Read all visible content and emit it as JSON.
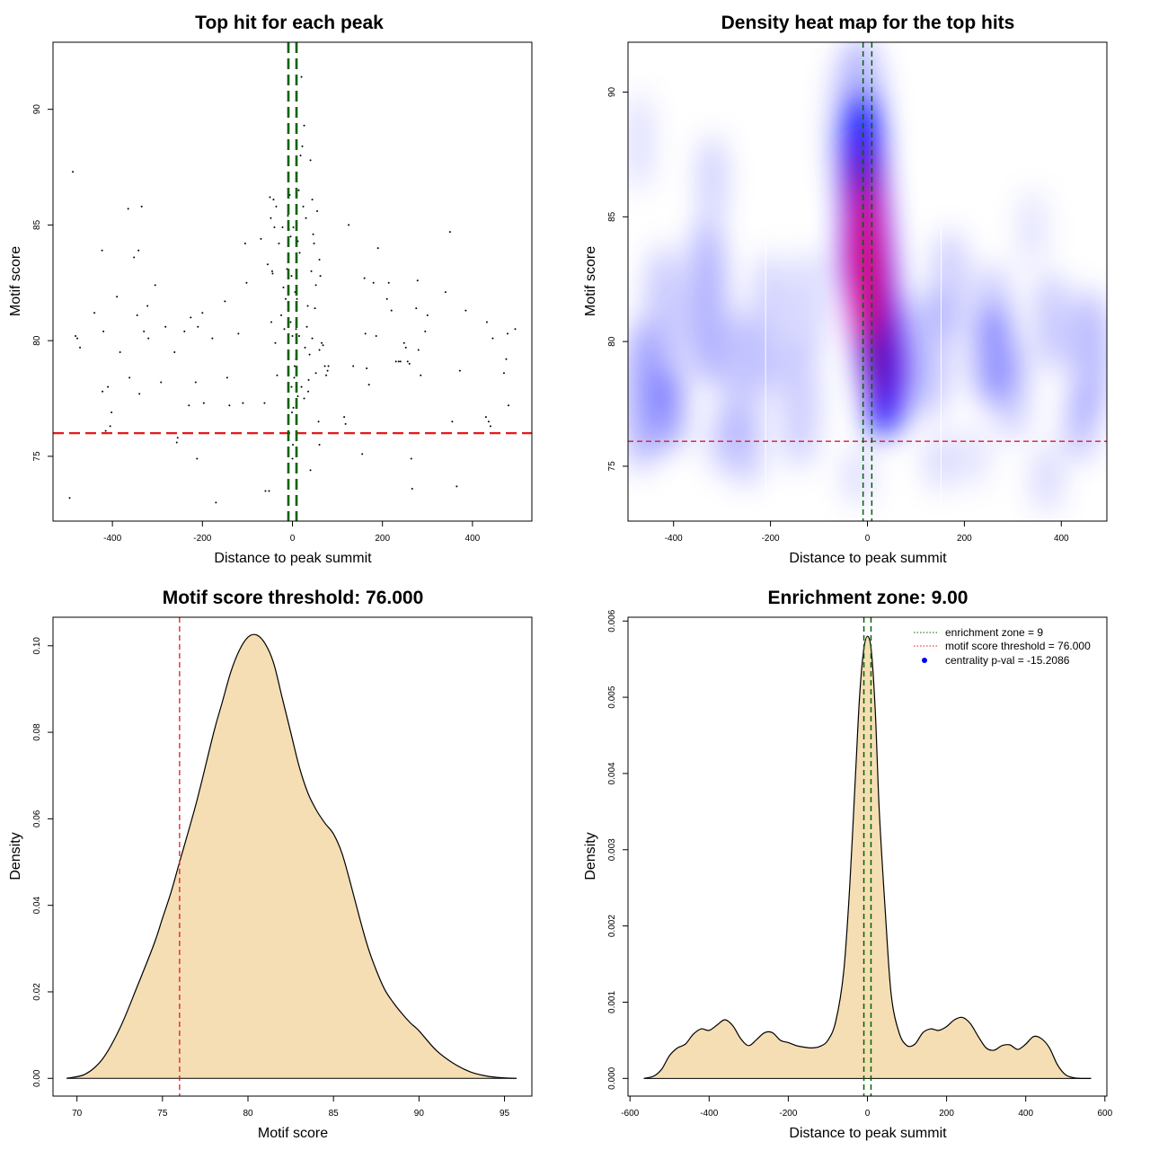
{
  "chart_data": [
    {
      "type": "scatter",
      "title": "Top hit for each peak",
      "xlabel": "Distance to peak summit",
      "ylabel": "Motif score",
      "xlim": [
        -532,
        532
      ],
      "ylim": [
        72.2,
        92.9
      ],
      "xticks": [
        -400,
        -200,
        0,
        200,
        400
      ],
      "yticks": [
        75,
        80,
        85,
        90
      ],
      "hline": {
        "value": 76,
        "color": "#e31a1c"
      },
      "vlines": {
        "values": [
          -9,
          9
        ],
        "color": "#006400"
      },
      "points": [
        [
          -488,
          87.3
        ],
        [
          -495,
          73.2
        ],
        [
          -482,
          80.2
        ],
        [
          -478,
          80.1
        ],
        [
          -472,
          79.7
        ],
        [
          -440,
          81.2
        ],
        [
          -423,
          83.9
        ],
        [
          -422,
          77.8
        ],
        [
          -420,
          80.4
        ],
        [
          -415,
          76.1
        ],
        [
          -410,
          78.0
        ],
        [
          -405,
          76.3
        ],
        [
          -402,
          76.9
        ],
        [
          -390,
          81.9
        ],
        [
          -383,
          79.5
        ],
        [
          -365,
          85.7
        ],
        [
          -362,
          78.4
        ],
        [
          -352,
          83.6
        ],
        [
          -345,
          81.1
        ],
        [
          -340,
          77.7
        ],
        [
          -342,
          83.9
        ],
        [
          -335,
          85.8
        ],
        [
          -330,
          80.4
        ],
        [
          -322,
          81.5
        ],
        [
          -320,
          80.1
        ],
        [
          -305,
          82.4
        ],
        [
          -292,
          78.2
        ],
        [
          -282,
          80.6
        ],
        [
          -262,
          79.5
        ],
        [
          -257,
          75.6
        ],
        [
          -255,
          75.8
        ],
        [
          -240,
          80.4
        ],
        [
          -230,
          77.2
        ],
        [
          -226,
          81.0
        ],
        [
          -215,
          78.2
        ],
        [
          -212,
          74.9
        ],
        [
          -210,
          80.6
        ],
        [
          -200,
          81.2
        ],
        [
          -197,
          77.3
        ],
        [
          -178,
          80.1
        ],
        [
          -170,
          73.0
        ],
        [
          -150,
          81.7
        ],
        [
          -145,
          78.4
        ],
        [
          -140,
          77.2
        ],
        [
          -120,
          80.3
        ],
        [
          -110,
          77.3
        ],
        [
          -105,
          84.2
        ],
        [
          -102,
          82.5
        ],
        [
          -70,
          84.4
        ],
        [
          -62,
          77.3
        ],
        [
          -60,
          73.5
        ],
        [
          -55,
          83.3
        ],
        [
          -52,
          73.5
        ],
        [
          -50,
          86.2
        ],
        [
          -48,
          85.3
        ],
        [
          -47,
          80.8
        ],
        [
          -45,
          83.0
        ],
        [
          -44,
          82.9
        ],
        [
          -42,
          86.1
        ],
        [
          -40,
          84.9
        ],
        [
          -38,
          79.9
        ],
        [
          -36,
          85.8
        ],
        [
          -34,
          78.5
        ],
        [
          -30,
          84.2
        ],
        [
          -25,
          81.1
        ],
        [
          -22,
          84.9
        ],
        [
          -20,
          82.3
        ],
        [
          -18,
          80.5
        ],
        [
          -15,
          81.8
        ],
        [
          -12,
          83.1
        ],
        [
          -10,
          85.4
        ],
        [
          -8,
          84.8
        ],
        [
          -6,
          86.3
        ],
        [
          -4,
          80.8
        ],
        [
          -2,
          82.8
        ],
        [
          0,
          80.2
        ],
        [
          2,
          84.9
        ],
        [
          4,
          78.4
        ],
        [
          6,
          82.1
        ],
        [
          8,
          80.5
        ],
        [
          10,
          81.8
        ],
        [
          12,
          84.3
        ],
        [
          14,
          86.5
        ],
        [
          16,
          83.8
        ],
        [
          18,
          88.0
        ],
        [
          20,
          91.4
        ],
        [
          22,
          88.4
        ],
        [
          24,
          85.8
        ],
        [
          26,
          89.3
        ],
        [
          28,
          79.7
        ],
        [
          30,
          85.3
        ],
        [
          32,
          80.6
        ],
        [
          34,
          81.5
        ],
        [
          36,
          78.3
        ],
        [
          38,
          79.4
        ],
        [
          40,
          87.8
        ],
        [
          42,
          83.0
        ],
        [
          44,
          86.1
        ],
        [
          46,
          84.6
        ],
        [
          48,
          84.2
        ],
        [
          50,
          81.4
        ],
        [
          52,
          82.4
        ],
        [
          55,
          85.6
        ],
        [
          58,
          76.5
        ],
        [
          60,
          83.5
        ],
        [
          62,
          82.8
        ],
        [
          65,
          79.9
        ],
        [
          68,
          79.8
        ],
        [
          72,
          78.9
        ],
        [
          75,
          78.5
        ],
        [
          78,
          78.7
        ],
        [
          80,
          78.9
        ],
        [
          125,
          85.0
        ],
        [
          115,
          76.7
        ],
        [
          118,
          76.4
        ],
        [
          135,
          78.9
        ],
        [
          155,
          75.1
        ],
        [
          160,
          82.7
        ],
        [
          162,
          80.3
        ],
        [
          165,
          78.8
        ],
        [
          170,
          78.1
        ],
        [
          180,
          82.5
        ],
        [
          186,
          80.2
        ],
        [
          190,
          84.0
        ],
        [
          210,
          81.8
        ],
        [
          214,
          82.5
        ],
        [
          220,
          81.3
        ],
        [
          230,
          79.1
        ],
        [
          236,
          79.1
        ],
        [
          240,
          79.1
        ],
        [
          248,
          79.9
        ],
        [
          252,
          79.7
        ],
        [
          256,
          79.1
        ],
        [
          260,
          79.0
        ],
        [
          264,
          74.9
        ],
        [
          266,
          73.6
        ],
        [
          275,
          81.4
        ],
        [
          278,
          82.6
        ],
        [
          280,
          79.6
        ],
        [
          285,
          78.5
        ],
        [
          295,
          80.4
        ],
        [
          300,
          81.1
        ],
        [
          340,
          82.1
        ],
        [
          350,
          84.7
        ],
        [
          355,
          76.5
        ],
        [
          365,
          73.7
        ],
        [
          372,
          78.7
        ],
        [
          385,
          81.3
        ],
        [
          430,
          76.7
        ],
        [
          432,
          80.8
        ],
        [
          436,
          76.5
        ],
        [
          440,
          76.3
        ],
        [
          445,
          80.1
        ],
        [
          470,
          78.6
        ],
        [
          475,
          79.2
        ],
        [
          478,
          80.3
        ],
        [
          480,
          77.2
        ],
        [
          495,
          80.5
        ],
        [
          8,
          79.2
        ],
        [
          -4,
          84.5
        ],
        [
          15,
          80.2
        ],
        [
          26,
          77.5
        ],
        [
          35,
          77.8
        ],
        [
          44,
          80.1
        ],
        [
          52,
          78.6
        ],
        [
          60,
          79.6
        ],
        [
          12,
          77.6
        ],
        [
          20,
          78.0
        ],
        [
          -1,
          76.9
        ],
        [
          5,
          78.9
        ],
        [
          2,
          77.1
        ],
        [
          1,
          75.5
        ],
        [
          0,
          74.9
        ],
        [
          -2,
          78.0
        ],
        [
          23,
          76.0
        ],
        [
          40,
          74.4
        ],
        [
          60,
          75.5
        ]
      ]
    },
    {
      "type": "heatmap",
      "title": "Density heat map for the top hits",
      "xlabel": "Distance to peak summit",
      "ylabel": "Motif score",
      "xlim": [
        -494,
        494
      ],
      "ylim": [
        72.8,
        92.0
      ],
      "xticks": [
        -400,
        -200,
        0,
        200,
        400
      ],
      "yticks": [
        75,
        80,
        85,
        90
      ],
      "hline": {
        "value": 76,
        "color": "#e31a1c"
      },
      "vlines": {
        "values": [
          -9,
          9
        ],
        "color": "#006400"
      },
      "colors": [
        "#ffffff",
        "#0000ff",
        "#ff0000"
      ]
    },
    {
      "type": "area",
      "title": "Motif score threshold: 76.000",
      "xlabel": "Motif score",
      "ylabel": "Density",
      "xlim": [
        68.6,
        96.6
      ],
      "ylim": [
        -0.0041,
        0.1066
      ],
      "xticks": [
        70,
        75,
        80,
        85,
        90,
        95
      ],
      "yticks": [
        0.0,
        0.02,
        0.04,
        0.06,
        0.08,
        0.1
      ],
      "ytick_labels": [
        "0.00",
        "0.02",
        "0.04",
        "0.06",
        "0.08",
        "0.10"
      ],
      "fill": "#f5deb3",
      "vline": {
        "value": 76,
        "color": "#e31a1c"
      },
      "x": [
        69.4,
        70.5,
        71.5,
        72.5,
        73.5,
        74.5,
        75.0,
        75.5,
        76.0,
        77.0,
        78.0,
        78.5,
        79.0,
        79.5,
        80.0,
        80.5,
        81.0,
        81.5,
        82.0,
        82.5,
        83.0,
        83.5,
        84.0,
        84.5,
        85.0,
        85.5,
        86.0,
        86.5,
        87.0,
        87.5,
        88.0,
        88.5,
        89.0,
        89.5,
        90.0,
        91.0,
        92.0,
        93.0,
        94.0,
        95.0,
        95.7
      ],
      "y": [
        0.0,
        0.001,
        0.0045,
        0.0115,
        0.021,
        0.031,
        0.037,
        0.043,
        0.05,
        0.064,
        0.08,
        0.087,
        0.094,
        0.099,
        0.102,
        0.1025,
        0.1005,
        0.096,
        0.088,
        0.08,
        0.072,
        0.066,
        0.062,
        0.059,
        0.0565,
        0.052,
        0.045,
        0.0375,
        0.0305,
        0.025,
        0.0205,
        0.0175,
        0.015,
        0.0128,
        0.011,
        0.0065,
        0.0035,
        0.0015,
        0.0005,
        0.0001,
        0.0
      ]
    },
    {
      "type": "area",
      "title": "Enrichment zone: 9.00",
      "xlabel": "Distance to peak summit",
      "ylabel": "Density",
      "xlim": [
        -605,
        605
      ],
      "ylim": [
        -0.000232,
        0.00605
      ],
      "xticks": [
        -600,
        -400,
        -200,
        0,
        200,
        400,
        600
      ],
      "yticks": [
        0.0,
        0.001,
        0.002,
        0.003,
        0.004,
        0.005,
        0.006
      ],
      "ytick_labels": [
        "0.000",
        "0.001",
        "0.002",
        "0.003",
        "0.004",
        "0.005",
        "0.006"
      ],
      "fill": "#f5deb3",
      "vlines": {
        "values": [
          -9,
          9
        ],
        "color": "#006400"
      },
      "x": [
        -565,
        -540,
        -520,
        -500,
        -480,
        -460,
        -440,
        -420,
        -400,
        -380,
        -360,
        -340,
        -320,
        -300,
        -280,
        -260,
        -240,
        -220,
        -200,
        -180,
        -160,
        -140,
        -120,
        -100,
        -80,
        -60,
        -45,
        -30,
        -20,
        -10,
        0,
        10,
        20,
        30,
        45,
        60,
        80,
        100,
        120,
        140,
        160,
        180,
        200,
        220,
        240,
        260,
        280,
        300,
        320,
        340,
        360,
        380,
        400,
        420,
        440,
        460,
        480,
        500,
        520,
        540,
        565
      ],
      "y": [
        0.0,
        3e-05,
        0.00012,
        0.0003,
        0.0004,
        0.00045,
        0.00058,
        0.00065,
        0.00063,
        0.0007,
        0.00077,
        0.00069,
        0.00052,
        0.00043,
        0.00051,
        0.0006,
        0.0006,
        0.0005,
        0.00047,
        0.00043,
        0.00041,
        0.0004,
        0.00042,
        0.0005,
        0.00075,
        0.0014,
        0.0025,
        0.004,
        0.005,
        0.0056,
        0.0058,
        0.0056,
        0.0048,
        0.0035,
        0.0022,
        0.0011,
        0.0006,
        0.00043,
        0.00045,
        0.0006,
        0.00065,
        0.00063,
        0.00068,
        0.00077,
        0.0008,
        0.00072,
        0.00055,
        0.0004,
        0.00037,
        0.00043,
        0.00044,
        0.00038,
        0.00045,
        0.00055,
        0.00052,
        0.0004,
        0.00018,
        5e-05,
        1e-05,
        0.0,
        0.0
      ],
      "legend": {
        "position": "top-right",
        "entries": [
          {
            "label": "enrichment zone = 9",
            "color": "#006400",
            "style": "dotted-line"
          },
          {
            "label": "motif score threshold = 76.000",
            "color": "#e31a1c",
            "style": "dotted-line"
          },
          {
            "label": "centrality p-val = -15.2086",
            "color": "#0000ff",
            "style": "point"
          }
        ]
      }
    }
  ]
}
